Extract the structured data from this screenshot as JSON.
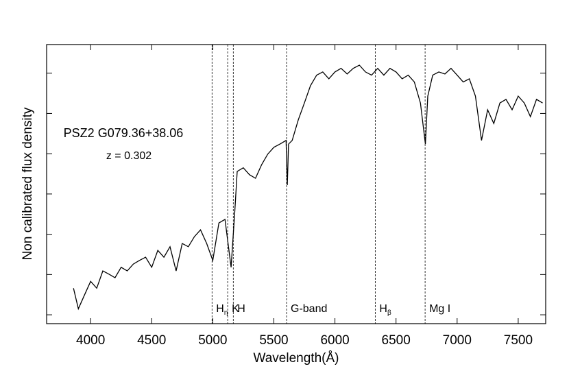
{
  "chart_data": {
    "type": "line",
    "annotations": [
      "PSZ2 G079.36+38.06",
      "z = 0.302"
    ],
    "xlabel": "Wavelength(Å)",
    "ylabel": "Non calibrated flux density",
    "xlim": [
      3640,
      7725
    ],
    "xticks": [
      4000,
      4500,
      5000,
      5500,
      6000,
      6500,
      7000,
      7500
    ],
    "ylim": [
      -0.22,
      6.71
    ],
    "yticks": [
      0,
      1,
      2,
      3,
      4,
      5,
      6
    ],
    "color": "#000000",
    "lines": [
      {
        "x": 4994,
        "label": "H",
        "sub": "η"
      },
      {
        "x": 5122,
        "label": "K"
      },
      {
        "x": 5168,
        "label": "H"
      },
      {
        "x": 5604,
        "label": "G-band"
      },
      {
        "x": 6330,
        "label": "H",
        "sub": "β"
      },
      {
        "x": 6738,
        "label": "Mg I"
      }
    ],
    "x": [
      3860,
      3900,
      3950,
      4000,
      4050,
      4100,
      4150,
      4200,
      4250,
      4300,
      4350,
      4400,
      4450,
      4500,
      4550,
      4600,
      4650,
      4700,
      4750,
      4800,
      4850,
      4900,
      4950,
      5000,
      5050,
      5100,
      5150,
      5180,
      5200,
      5250,
      5300,
      5350,
      5400,
      5450,
      5500,
      5550,
      5600,
      5610,
      5620,
      5650,
      5700,
      5750,
      5800,
      5850,
      5900,
      5950,
      6000,
      6050,
      6100,
      6150,
      6200,
      6250,
      6300,
      6350,
      6400,
      6450,
      6500,
      6550,
      6600,
      6650,
      6700,
      6740,
      6760,
      6800,
      6850,
      6900,
      6950,
      7000,
      7050,
      7100,
      7150,
      7200,
      7250,
      7300,
      7350,
      7400,
      7450,
      7500,
      7550,
      7600,
      7650,
      7700
    ],
    "values": [
      0.66,
      0.15,
      0.49,
      0.83,
      0.66,
      1.09,
      1.01,
      0.92,
      1.18,
      1.09,
      1.26,
      1.35,
      1.43,
      1.18,
      1.6,
      1.43,
      1.69,
      1.09,
      1.77,
      1.69,
      1.94,
      2.11,
      1.77,
      1.35,
      2.28,
      2.37,
      1.18,
      2.54,
      3.56,
      3.65,
      3.48,
      3.39,
      3.73,
      3.99,
      4.16,
      4.24,
      4.33,
      3.22,
      4.24,
      4.33,
      4.84,
      5.26,
      5.69,
      5.95,
      6.03,
      5.86,
      6.03,
      6.12,
      5.98,
      6.12,
      6.2,
      6.03,
      5.95,
      6.12,
      5.95,
      6.12,
      6.03,
      5.86,
      5.95,
      5.78,
      5.26,
      4.24,
      5.43,
      5.95,
      6.03,
      5.98,
      6.12,
      5.95,
      5.78,
      5.86,
      5.43,
      4.33,
      5.09,
      4.75,
      5.26,
      5.35,
      5.09,
      5.43,
      5.26,
      4.92,
      5.35,
      5.26
    ]
  }
}
